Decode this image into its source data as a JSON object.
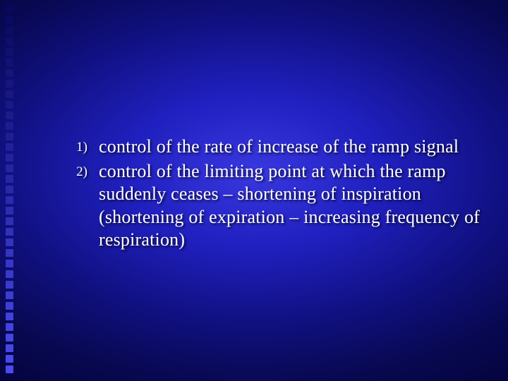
{
  "slide": {
    "background": {
      "gradient_center": "#3838e0",
      "gradient_mid": "#101080",
      "gradient_edge": "#000030"
    },
    "decoration": {
      "square_count": 35,
      "square_size": 11,
      "square_gap": 4,
      "color_top": "#080860",
      "color_bottom": "#4a4af0"
    },
    "text_color": "#ffffff",
    "body_fontsize": 26,
    "marker_fontsize": 19,
    "font_family": "Garamond, Georgia, serif",
    "items": [
      {
        "marker": "1)",
        "text": "control of the rate of increase of the ramp signal"
      },
      {
        "marker": "2)",
        "text": "control of the limiting point at which the ramp suddenly ceases – shortening of inspiration (shortening of expiration – increasing frequency of respiration)"
      }
    ]
  }
}
